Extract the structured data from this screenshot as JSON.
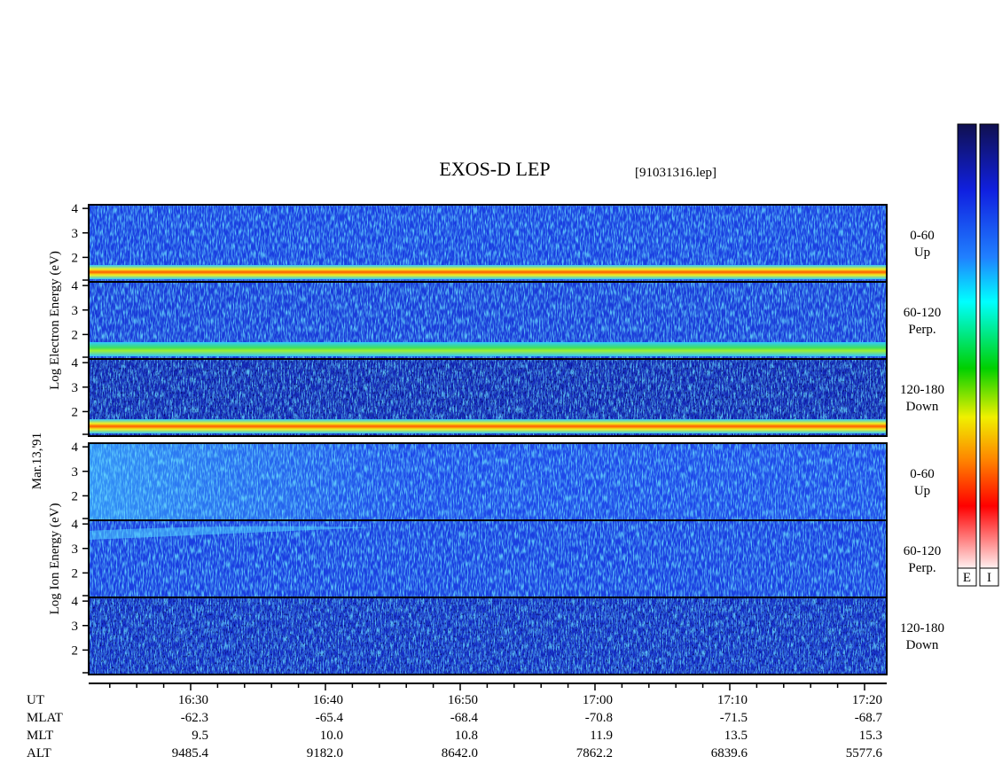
{
  "header": {
    "title": "EXOS-D LEP",
    "file": "[91031316.lep]"
  },
  "date": "Mar.13,'91",
  "groups": [
    {
      "label": "Log Electron Energy (eV)",
      "panels": [
        {
          "range": "0-60",
          "direction": "Up"
        },
        {
          "range": "60-120",
          "direction": "Perp."
        },
        {
          "range": "120-180",
          "direction": "Down"
        }
      ]
    },
    {
      "label": "Log Ion Energy (eV)",
      "panels": [
        {
          "range": "0-60",
          "direction": "Up"
        },
        {
          "range": "60-120",
          "direction": "Perp."
        },
        {
          "range": "120-180",
          "direction": "Down"
        }
      ]
    }
  ],
  "energy_axis": {
    "ylim": [
      1,
      4.15
    ],
    "yticks": [
      2,
      3,
      4
    ]
  },
  "time_table": {
    "row_labels": [
      "UT",
      "MLAT",
      "MLT",
      "ALT"
    ],
    "columns": [
      [
        "16:30",
        "-62.3",
        "9.5",
        "9485.4"
      ],
      [
        "16:40",
        "-65.4",
        "10.0",
        "9182.0"
      ],
      [
        "16:50",
        "-68.4",
        "10.8",
        "8642.0"
      ],
      [
        "17:00",
        "-70.8",
        "11.9",
        "7862.2"
      ],
      [
        "17:10",
        "-71.5",
        "13.5",
        "6839.6"
      ],
      [
        "17:20",
        "-68.7",
        "15.3",
        "5577.6"
      ]
    ]
  },
  "colorbar": {
    "labels": [
      "E",
      "I"
    ]
  }
}
